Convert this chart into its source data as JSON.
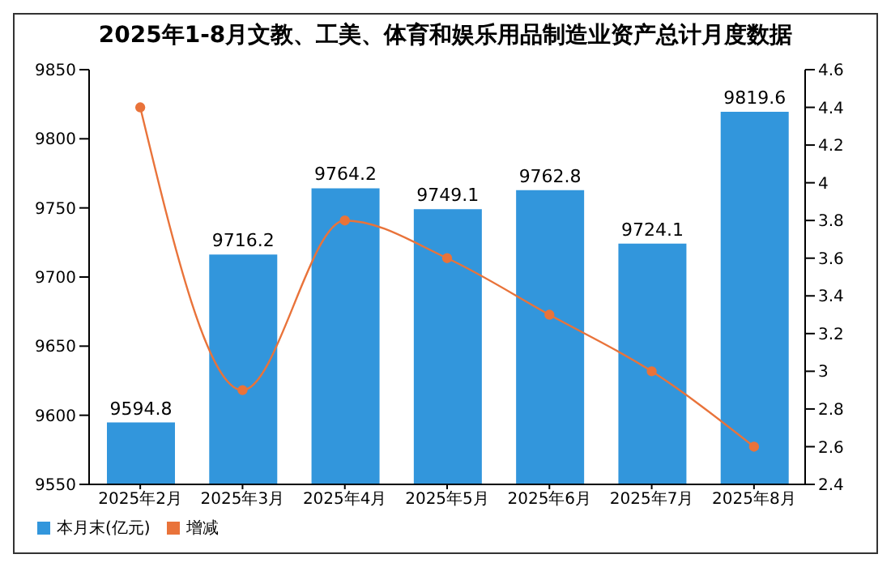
{
  "chart_data": {
    "type": "bar",
    "title": "2025年1-8月文教、工美、体育和娱乐用品制造业资产总计月度数据",
    "categories": [
      "2025年2月",
      "2025年3月",
      "2025年4月",
      "2025年5月",
      "2025年6月",
      "2025年7月",
      "2025年8月"
    ],
    "series": [
      {
        "name": "本月末(亿元)",
        "color": "#3296dc",
        "values": [
          9594.8,
          9716.2,
          9764.2,
          9749.1,
          9762.8,
          9724.1,
          9819.6
        ],
        "value_labels": [
          "9594.8",
          "9716.2",
          "9764.2",
          "9749.1",
          "9762.8",
          "9724.1",
          "9819.6"
        ]
      },
      {
        "name": "增减",
        "type": "line",
        "axis": "y2",
        "color": "#e9733a",
        "values": [
          4.4,
          2.9,
          3.8,
          3.6,
          3.3,
          3.0,
          2.6
        ]
      }
    ],
    "ylim": [
      9550,
      9850
    ],
    "yticks": [
      9550,
      9600,
      9650,
      9700,
      9750,
      9800,
      9850
    ],
    "y2lim": [
      2.4,
      4.6
    ],
    "y2ticks": [
      2.4,
      2.6,
      2.8,
      3,
      3.2,
      3.4,
      3.6,
      3.8,
      4,
      4.2,
      4.4,
      4.6
    ],
    "marker": "circle",
    "legend": "bottom left",
    "grid": false
  }
}
